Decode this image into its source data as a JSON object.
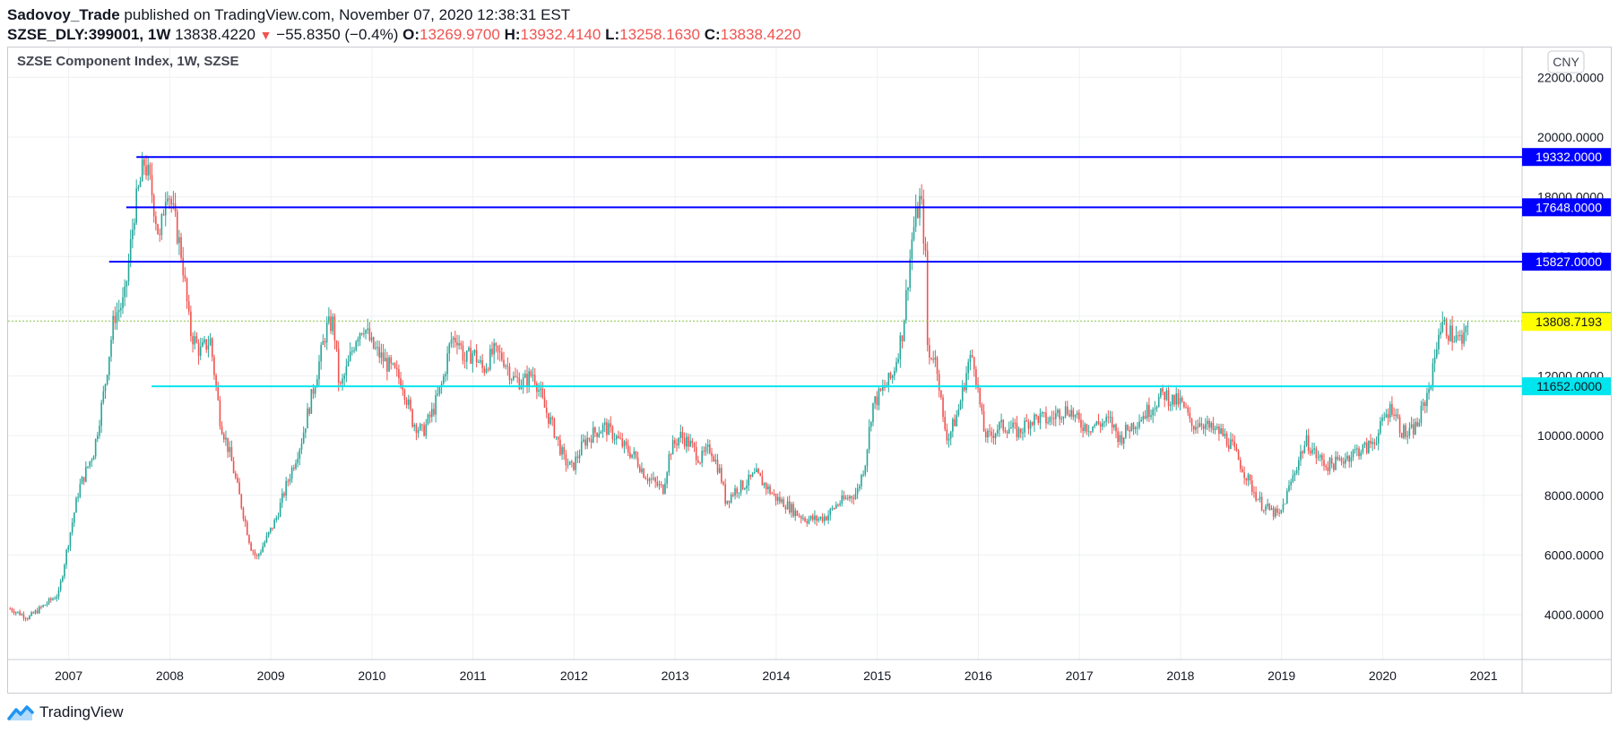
{
  "header": {
    "author": "Sadovoy_Trade",
    "published_text": "published on TradingView.com, November 07, 2020 12:38:31 EST",
    "symbol": "SZSE_DLY:399001, 1W",
    "last_price": "13838.4220",
    "change": "−55.8350 (−0.4%)",
    "open_label": "O:",
    "open": "13269.9700",
    "high_label": "H:",
    "high": "13932.4140",
    "low_label": "L:",
    "low": "13258.1630",
    "close_label": "C:",
    "close": "13838.4220"
  },
  "legend": {
    "title": "SZSE Component Index, 1W, SZSE"
  },
  "currency_button": "CNY",
  "footer": {
    "brand": "TradingView"
  },
  "colors": {
    "up": "#26a69a",
    "down": "#ef5350",
    "resistance": "#0000ff",
    "support": "#00e5ee",
    "last_price_bg": "#22998e",
    "marker_bg": "#ffff00",
    "last_price_line": "#8bc34a"
  },
  "chart_data": {
    "type": "candlestick",
    "title": "SZSE Component Index, 1W, SZSE",
    "x_ticks": [
      "2007",
      "2008",
      "2009",
      "2010",
      "2011",
      "2012",
      "2013",
      "2014",
      "2015",
      "2016",
      "2017",
      "2018",
      "2019",
      "2020",
      "2021"
    ],
    "y_ticks": [
      "4000.0000",
      "6000.0000",
      "8000.0000",
      "10000.0000",
      "12000.0000",
      "14000.0000",
      "16000.0000",
      "18000.0000",
      "20000.0000",
      "22000.0000"
    ],
    "ylim": [
      2500,
      23000
    ],
    "x_range": [
      2006.4,
      2021.38
    ],
    "grid": true,
    "close_path": [
      [
        2006.42,
        4200
      ],
      [
        2006.6,
        3900
      ],
      [
        2006.75,
        4300
      ],
      [
        2006.9,
        4700
      ],
      [
        2007.0,
        6500
      ],
      [
        2007.1,
        8200
      ],
      [
        2007.25,
        9500
      ],
      [
        2007.35,
        11500
      ],
      [
        2007.45,
        14000
      ],
      [
        2007.55,
        14500
      ],
      [
        2007.65,
        17500
      ],
      [
        2007.75,
        19200
      ],
      [
        2007.82,
        18200
      ],
      [
        2007.9,
        16500
      ],
      [
        2007.97,
        18500
      ],
      [
        2008.05,
        17200
      ],
      [
        2008.12,
        16000
      ],
      [
        2008.2,
        13500
      ],
      [
        2008.3,
        12800
      ],
      [
        2008.4,
        13200
      ],
      [
        2008.5,
        10500
      ],
      [
        2008.6,
        9300
      ],
      [
        2008.7,
        7800
      ],
      [
        2008.8,
        6300
      ],
      [
        2008.86,
        5900
      ],
      [
        2008.95,
        6500
      ],
      [
        2009.05,
        7200
      ],
      [
        2009.15,
        8300
      ],
      [
        2009.3,
        9800
      ],
      [
        2009.45,
        12000
      ],
      [
        2009.55,
        13600
      ],
      [
        2009.62,
        13800
      ],
      [
        2009.68,
        11500
      ],
      [
        2009.75,
        12200
      ],
      [
        2009.85,
        13400
      ],
      [
        2009.92,
        13700
      ],
      [
        2010.0,
        13000
      ],
      [
        2010.1,
        12600
      ],
      [
        2010.2,
        12200
      ],
      [
        2010.3,
        11800
      ],
      [
        2010.4,
        10500
      ],
      [
        2010.5,
        10100
      ],
      [
        2010.6,
        10800
      ],
      [
        2010.7,
        11800
      ],
      [
        2010.78,
        13200
      ],
      [
        2010.85,
        13300
      ],
      [
        2010.92,
        12500
      ],
      [
        2011.0,
        12800
      ],
      [
        2011.1,
        12200
      ],
      [
        2011.2,
        12800
      ],
      [
        2011.3,
        12600
      ],
      [
        2011.4,
        11900
      ],
      [
        2011.5,
        11800
      ],
      [
        2011.6,
        12100
      ],
      [
        2011.7,
        11000
      ],
      [
        2011.8,
        10200
      ],
      [
        2011.9,
        9200
      ],
      [
        2011.98,
        8900
      ],
      [
        2012.1,
        9800
      ],
      [
        2012.2,
        10100
      ],
      [
        2012.3,
        10300
      ],
      [
        2012.4,
        10000
      ],
      [
        2012.5,
        9600
      ],
      [
        2012.6,
        9300
      ],
      [
        2012.7,
        8700
      ],
      [
        2012.8,
        8400
      ],
      [
        2012.88,
        8200
      ],
      [
        2012.95,
        9500
      ],
      [
        2013.05,
        10000
      ],
      [
        2013.15,
        9700
      ],
      [
        2013.25,
        9200
      ],
      [
        2013.35,
        9600
      ],
      [
        2013.45,
        8700
      ],
      [
        2013.5,
        7800
      ],
      [
        2013.6,
        8200
      ],
      [
        2013.7,
        8400
      ],
      [
        2013.8,
        8700
      ],
      [
        2013.9,
        8300
      ],
      [
        2014.0,
        7900
      ],
      [
        2014.1,
        7700
      ],
      [
        2014.2,
        7400
      ],
      [
        2014.3,
        7200
      ],
      [
        2014.4,
        7200
      ],
      [
        2014.5,
        7300
      ],
      [
        2014.6,
        7700
      ],
      [
        2014.7,
        7900
      ],
      [
        2014.8,
        8100
      ],
      [
        2014.88,
        9100
      ],
      [
        2014.95,
        11000
      ],
      [
        2015.05,
        11500
      ],
      [
        2015.15,
        12000
      ],
      [
        2015.25,
        13500
      ],
      [
        2015.35,
        16800
      ],
      [
        2015.43,
        18000
      ],
      [
        2015.48,
        15800
      ],
      [
        2015.5,
        12500
      ],
      [
        2015.55,
        12800
      ],
      [
        2015.6,
        12200
      ],
      [
        2015.65,
        10500
      ],
      [
        2015.7,
        9900
      ],
      [
        2015.8,
        10800
      ],
      [
        2015.9,
        12400
      ],
      [
        2015.95,
        12700
      ],
      [
        2016.0,
        11400
      ],
      [
        2016.05,
        10200
      ],
      [
        2016.1,
        9900
      ],
      [
        2016.2,
        10300
      ],
      [
        2016.3,
        10300
      ],
      [
        2016.4,
        10100
      ],
      [
        2016.5,
        10500
      ],
      [
        2016.6,
        10600
      ],
      [
        2016.7,
        10500
      ],
      [
        2016.8,
        10800
      ],
      [
        2016.9,
        10900
      ],
      [
        2017.0,
        10400
      ],
      [
        2017.1,
        10300
      ],
      [
        2017.2,
        10400
      ],
      [
        2017.3,
        10500
      ],
      [
        2017.4,
        9900
      ],
      [
        2017.5,
        10300
      ],
      [
        2017.6,
        10600
      ],
      [
        2017.7,
        10900
      ],
      [
        2017.8,
        11300
      ],
      [
        2017.85,
        11400
      ],
      [
        2017.9,
        11200
      ],
      [
        2018.0,
        11100
      ],
      [
        2018.07,
        10700
      ],
      [
        2018.1,
        10300
      ],
      [
        2018.2,
        10500
      ],
      [
        2018.3,
        10200
      ],
      [
        2018.4,
        10100
      ],
      [
        2018.5,
        9700
      ],
      [
        2018.6,
        9000
      ],
      [
        2018.7,
        8300
      ],
      [
        2018.8,
        7700
      ],
      [
        2018.88,
        7500
      ],
      [
        2018.98,
        7300
      ],
      [
        2019.1,
        8500
      ],
      [
        2019.2,
        9500
      ],
      [
        2019.25,
        9800
      ],
      [
        2019.35,
        9300
      ],
      [
        2019.45,
        9000
      ],
      [
        2019.55,
        9100
      ],
      [
        2019.65,
        9300
      ],
      [
        2019.75,
        9500
      ],
      [
        2019.85,
        9600
      ],
      [
        2019.95,
        10000
      ],
      [
        2020.03,
        10700
      ],
      [
        2020.1,
        11000
      ],
      [
        2020.18,
        10200
      ],
      [
        2020.25,
        10000
      ],
      [
        2020.35,
        10400
      ],
      [
        2020.45,
        11500
      ],
      [
        2020.5,
        12200
      ],
      [
        2020.55,
        13500
      ],
      [
        2020.6,
        13700
      ],
      [
        2020.7,
        13300
      ],
      [
        2020.8,
        13100
      ],
      [
        2020.85,
        13838.422
      ]
    ],
    "horizontal_levels": [
      {
        "value": 19332,
        "label": "19332.0000",
        "color": "#0000ff",
        "x_start": 2007.67
      },
      {
        "value": 17648,
        "label": "17648.0000",
        "color": "#0000ff",
        "x_start": 2007.57
      },
      {
        "value": 15827,
        "label": "15827.0000",
        "color": "#0000ff",
        "x_start": 2007.4
      },
      {
        "value": 11652,
        "label": "11652.0000",
        "color": "#00e5ee",
        "x_start": 2007.82
      }
    ],
    "last_price": {
      "value": 13838.422,
      "label": "13838.4220"
    },
    "marker": {
      "value": 13808.7193,
      "label": "13808.7193"
    }
  }
}
